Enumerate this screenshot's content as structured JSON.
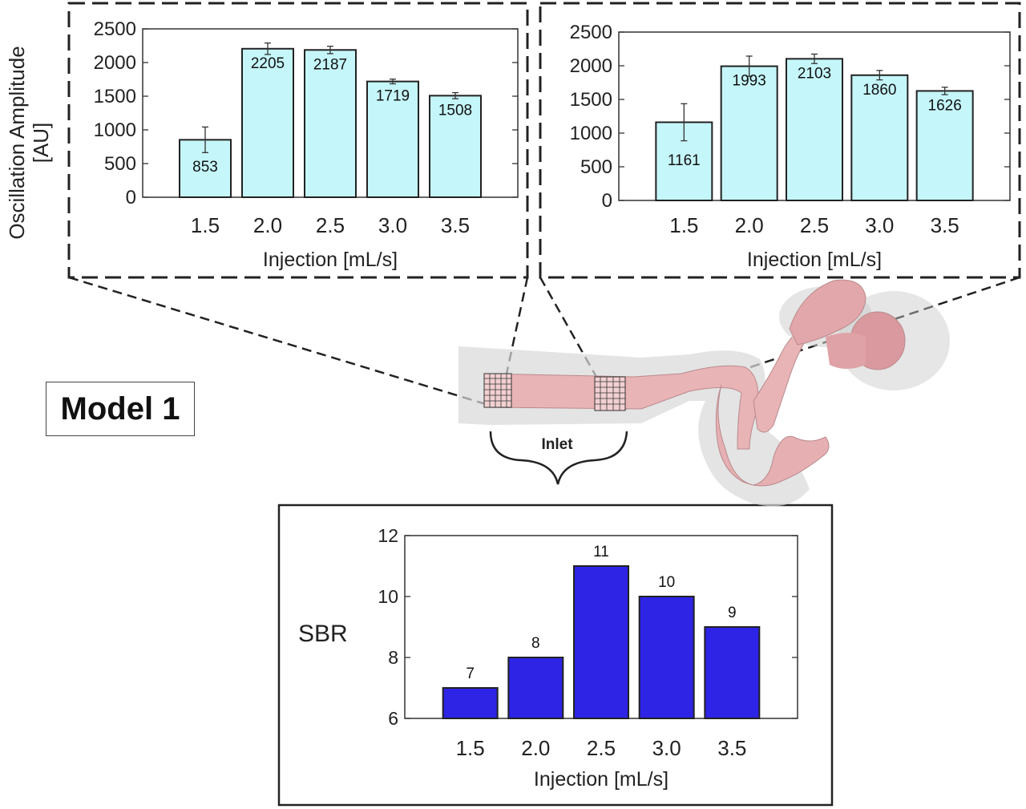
{
  "model_label": "Model 1",
  "inlet_label": "Inlet",
  "shared_ylabel_line1": "Oscillation Amplitude",
  "shared_ylabel_line2": "[AU]",
  "colors": {
    "amplitude_bar": "#c5f6fa",
    "sbr_bar": "#2e24e6",
    "vessel": "#e8b4b6",
    "vessel_shadow": "#d4d4d4"
  },
  "chart_data": [
    {
      "type": "bar",
      "categories": [
        "1.5",
        "2.0",
        "2.5",
        "3.0",
        "3.5"
      ],
      "values": [
        853,
        2205,
        2187,
        1719,
        1508
      ],
      "value_labels": [
        "853",
        "2205",
        "2187",
        "1719",
        "1508"
      ],
      "errors": [
        190,
        85,
        55,
        35,
        45
      ],
      "xlabel": "Injection [mL/s]",
      "ylabel": "Oscillation Amplitude [AU]",
      "ylim": [
        0,
        2500
      ],
      "yticks": [
        0,
        500,
        1000,
        1500,
        2000,
        2500
      ],
      "grid": false
    },
    {
      "type": "bar",
      "categories": [
        "1.5",
        "2.0",
        "2.5",
        "3.0",
        "3.5"
      ],
      "values": [
        1161,
        1993,
        2103,
        1860,
        1626
      ],
      "value_labels": [
        "1161",
        "1993",
        "2103",
        "1860",
        "1626"
      ],
      "errors": [
        275,
        150,
        70,
        70,
        55
      ],
      "xlabel": "Injection [mL/s]",
      "ylabel": "",
      "ylim": [
        0,
        2500
      ],
      "yticks": [
        0,
        500,
        1000,
        1500,
        2000,
        2500
      ],
      "grid": false
    },
    {
      "type": "bar",
      "categories": [
        "1.5",
        "2.0",
        "2.5",
        "3.0",
        "3.5"
      ],
      "values": [
        7,
        8,
        11,
        10,
        9
      ],
      "value_labels": [
        "7",
        "8",
        "11",
        "10",
        "9"
      ],
      "xlabel": "Injection [mL/s]",
      "ylabel": "SBR",
      "ylim": [
        6,
        12
      ],
      "yticks": [
        6,
        8,
        10,
        12
      ],
      "grid": false
    }
  ]
}
